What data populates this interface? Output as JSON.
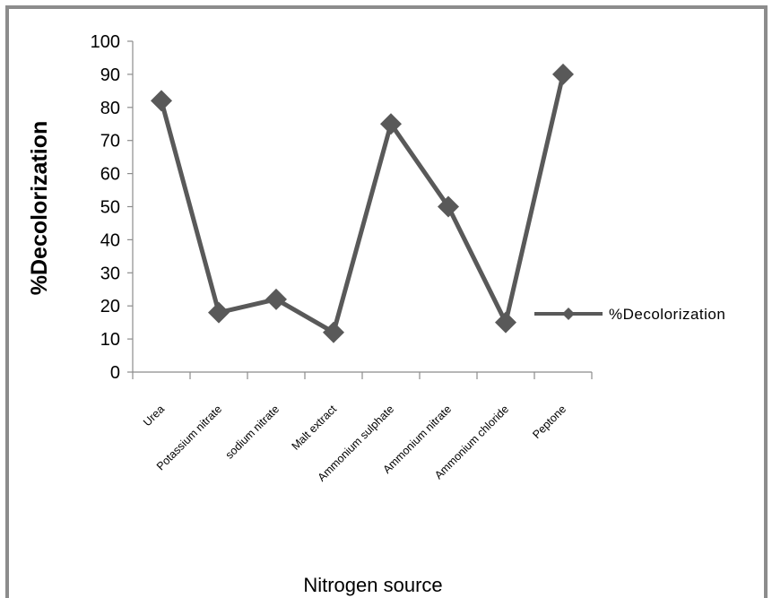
{
  "chart_data": {
    "type": "line",
    "title": "",
    "categories": [
      "Urea",
      "Potassium  nitrate",
      "sodium  nitrate",
      "Malt extract",
      "Ammonium  sulphate",
      "Ammonium  nitrate",
      "Ammonium  chloride",
      "Peptone"
    ],
    "series": [
      {
        "name": "%Decolorization",
        "values": [
          82,
          18,
          22,
          12,
          75,
          50,
          15,
          90
        ],
        "color": "#595959",
        "marker": "diamond"
      }
    ],
    "xlabel": "Nitrogen source",
    "ylabel": "%Decolorization",
    "ylim": [
      0,
      100
    ],
    "yticks": [
      "0",
      "10",
      "20",
      "30",
      "40",
      "50",
      "60",
      "70",
      "80",
      "90",
      "100"
    ],
    "grid": false,
    "legend": "right",
    "frame_color": "#8c8c8c"
  }
}
